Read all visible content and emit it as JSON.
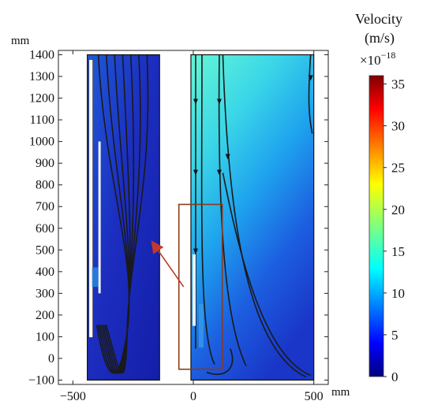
{
  "chart_data": {
    "type": "heatmap",
    "title": "",
    "xlabel": "",
    "ylabel": "",
    "x_unit": "mm",
    "y_unit": "mm",
    "xlim": [
      -560,
      560
    ],
    "ylim": [
      -120,
      1420
    ],
    "x_ticks": [
      -500,
      0,
      500
    ],
    "y_ticks": [
      -100,
      0,
      100,
      200,
      300,
      400,
      500,
      600,
      700,
      800,
      900,
      1000,
      1100,
      1200,
      1300,
      1400
    ],
    "grid": false,
    "domains": [
      {
        "name": "left",
        "x_range": [
          -440,
          -140
        ],
        "y_range": [
          -100,
          1400
        ],
        "velocity_max": 2.5
      },
      {
        "name": "right",
        "x_range": [
          -10,
          500
        ],
        "y_range": [
          -100,
          1400
        ],
        "velocity_min": 2,
        "velocity_max": 12
      }
    ],
    "inset_box": {
      "x_range": [
        -60,
        120
      ],
      "y_range": [
        -50,
        710
      ]
    },
    "colorbar": {
      "title_line1": "Velocity",
      "title_line2": "(m/s)",
      "multiplier": "×10",
      "exponent": "−18",
      "range": [
        0,
        36
      ],
      "ticks": [
        "0",
        "5",
        "10",
        "15",
        "20",
        "25",
        "30",
        "35"
      ],
      "tick_values": [
        0,
        5,
        10,
        15,
        20,
        25,
        30,
        35
      ],
      "colormap": "jet"
    }
  }
}
